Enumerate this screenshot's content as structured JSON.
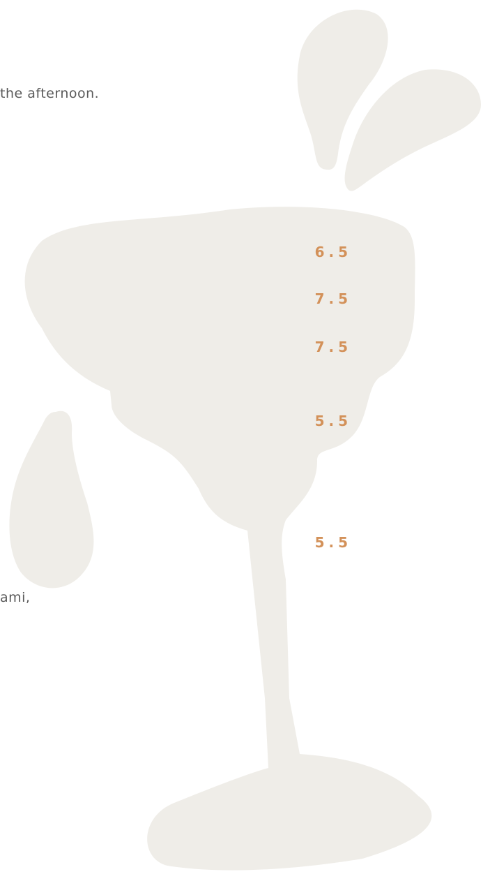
{
  "intro": "the afternoon.",
  "prices": [
    "6.5",
    "7.5",
    "7.5",
    "5.5",
    "5.5"
  ],
  "closing": "ami,"
}
